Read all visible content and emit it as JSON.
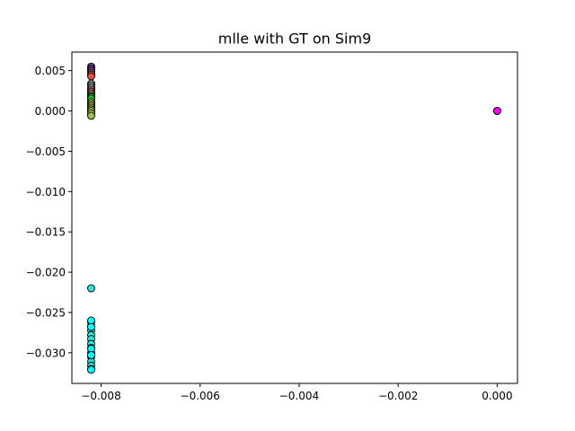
{
  "chart_data": {
    "type": "scatter",
    "title": "mlle with GT on Sim9",
    "xlabel": "",
    "ylabel": "",
    "xlim": [
      -0.00859,
      0.00041
    ],
    "ylim": [
      -0.0338,
      0.0073
    ],
    "xticks": [
      -0.008,
      -0.006,
      -0.004,
      -0.002,
      0.0
    ],
    "xtick_labels": [
      "−0.008",
      "−0.006",
      "−0.004",
      "−0.002",
      "0.000"
    ],
    "yticks": [
      0.005,
      0.0,
      -0.005,
      -0.01,
      -0.015,
      -0.02,
      -0.025,
      -0.03
    ],
    "ytick_labels": [
      "0.005",
      "0.000",
      "−0.005",
      "−0.010",
      "−0.015",
      "−0.020",
      "−0.025",
      "−0.030"
    ],
    "grid": false,
    "marker": "circle",
    "marker_edge_color": "#000000",
    "series": [
      {
        "color": "#8a5cc4",
        "x": [
          -0.0082,
          -0.0082,
          -0.0082,
          -0.0082
        ],
        "y": [
          0.0055,
          0.0053,
          0.0051,
          0.0049
        ]
      },
      {
        "color": "#e0504a",
        "x": [
          -0.0082,
          -0.0082,
          -0.0082
        ],
        "y": [
          0.0047,
          0.0045,
          0.0043
        ]
      },
      {
        "color": "#c0c0d8",
        "x": [
          -0.0082,
          -0.0082,
          -0.0082,
          -0.0082
        ],
        "y": [
          0.0034,
          0.0032,
          0.003,
          0.0028
        ]
      },
      {
        "color": "#f08090",
        "x": [
          -0.0082,
          -0.0082,
          -0.0082
        ],
        "y": [
          0.0026,
          0.0024,
          0.0022
        ]
      },
      {
        "color": "#d2b48c",
        "x": [
          -0.0082,
          -0.0082,
          -0.0082
        ],
        "y": [
          0.002,
          0.0018,
          0.0016
        ]
      },
      {
        "color": "#00ff20",
        "x": [
          -0.0082,
          -0.0082
        ],
        "y": [
          0.0017,
          0.0015
        ]
      },
      {
        "color": "#c8e040",
        "x": [
          -0.0082,
          -0.0082,
          -0.0082,
          -0.0082,
          -0.0082,
          -0.0082
        ],
        "y": [
          0.0012,
          0.001,
          0.0008,
          0.0006,
          0.0004,
          0.0002
        ]
      },
      {
        "color": "#a0c050",
        "x": [
          -0.0082,
          -0.0082,
          -0.0082
        ],
        "y": [
          0.0,
          -0.0003,
          -0.0006
        ]
      },
      {
        "color": "#30e0d8",
        "x": [
          -0.0082,
          -0.0082,
          -0.0082,
          -0.0082,
          -0.0082,
          -0.0082,
          -0.0082,
          -0.0082,
          -0.0082,
          -0.0082,
          -0.0082,
          -0.0082,
          -0.0082
        ],
        "y": [
          -0.022,
          -0.0262,
          -0.0267,
          -0.0272,
          -0.0278,
          -0.0283,
          -0.0289,
          -0.0294,
          -0.03,
          -0.0305,
          -0.0311,
          -0.0316,
          -0.032
        ]
      },
      {
        "color": "#00ffff",
        "x": [
          -0.0082,
          -0.0082,
          -0.0082,
          -0.0082,
          -0.0082
        ],
        "y": [
          -0.026,
          -0.0268,
          -0.0295,
          -0.0303,
          -0.0321
        ]
      },
      {
        "color": "#ff00ff",
        "x": [
          0.0,
          0.0,
          0.0
        ],
        "y": [
          0.0,
          0.0,
          0.0
        ]
      }
    ]
  }
}
